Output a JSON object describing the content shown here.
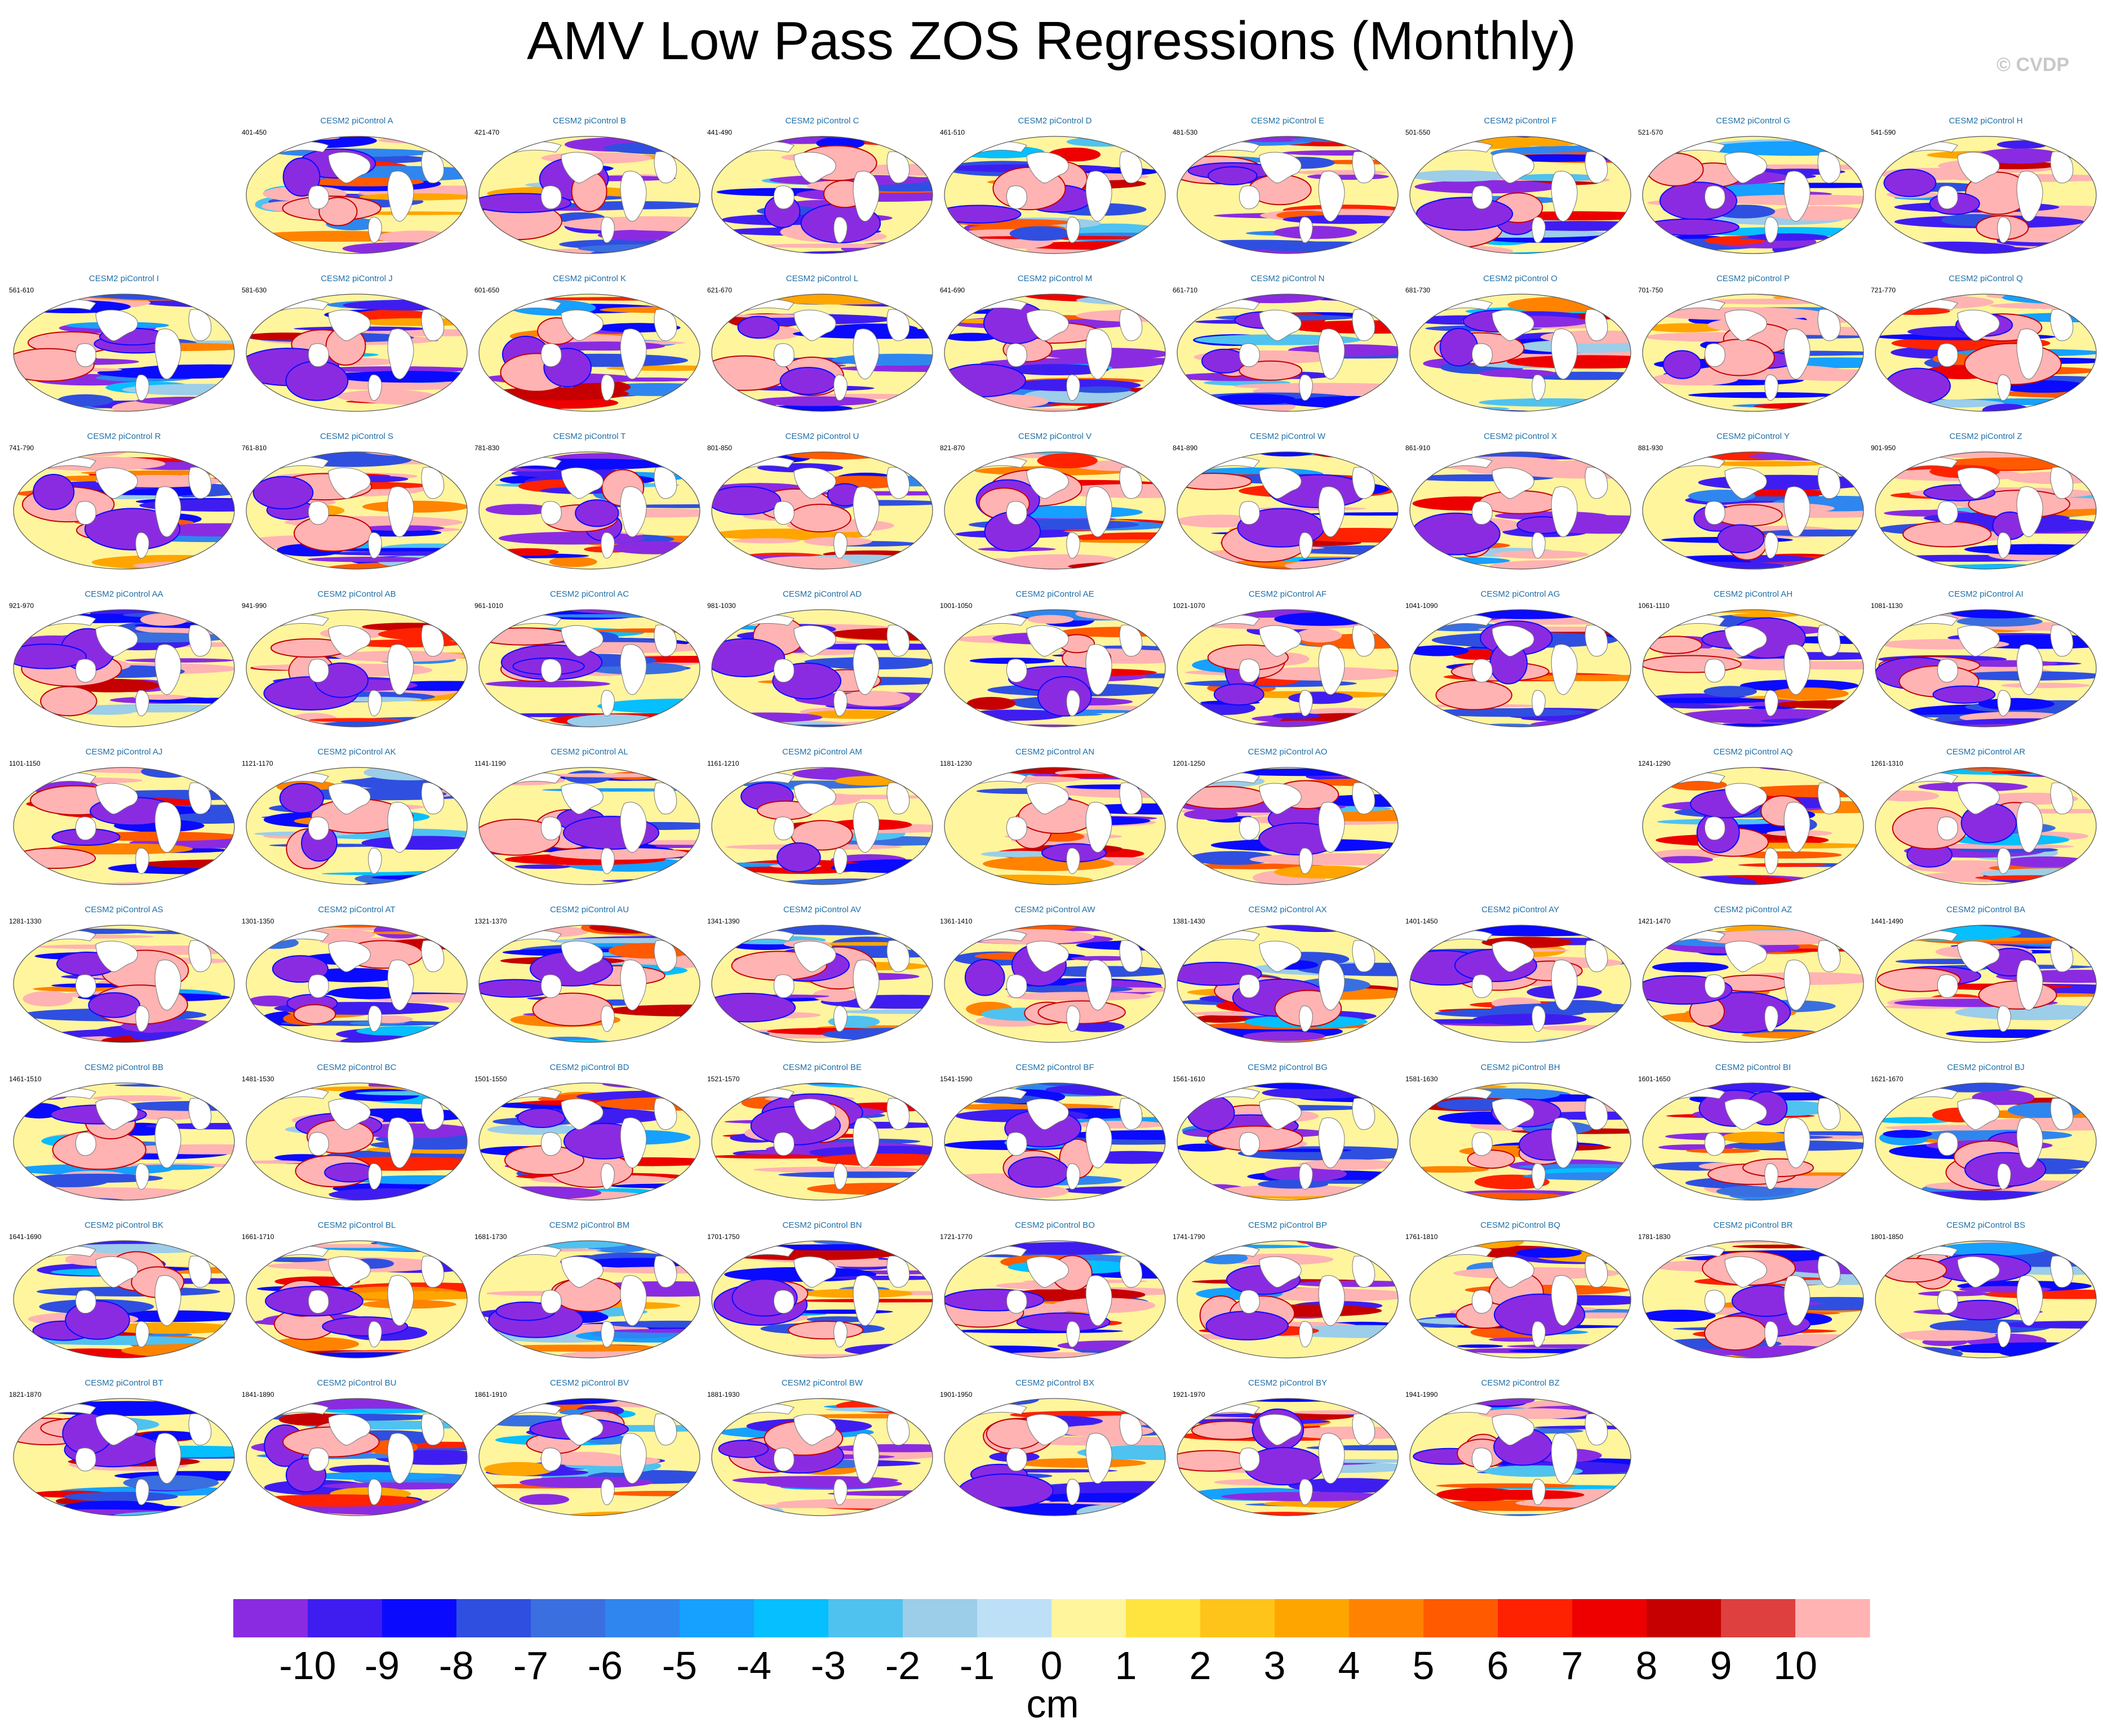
{
  "title": "AMV Low Pass ZOS Regressions (Monthly)",
  "credit": "© CVDP",
  "panel_title_prefix": "CESM2 piControl",
  "rows": [
    [
      "",
      "A",
      "B",
      "C",
      "D",
      "E",
      "F",
      "G",
      "H"
    ],
    [
      "I",
      "J",
      "K",
      "L",
      "M",
      "N",
      "O",
      "P",
      "Q"
    ],
    [
      "R",
      "S",
      "T",
      "U",
      "V",
      "W",
      "X",
      "Y",
      "Z"
    ],
    [
      "AA",
      "AB",
      "AC",
      "AD",
      "AE",
      "AF",
      "AG",
      "AH",
      "AI"
    ],
    [
      "AJ",
      "AK",
      "AL",
      "AM",
      "AN",
      "AO",
      "",
      "AQ",
      "AR"
    ],
    [
      "AS",
      "AT",
      "AU",
      "AV",
      "AW",
      "AX",
      "AY",
      "AZ",
      "BA"
    ],
    [
      "BB",
      "BC",
      "BD",
      "BE",
      "BF",
      "BG",
      "BH",
      "BI",
      "BJ"
    ],
    [
      "BK",
      "BL",
      "BM",
      "BN",
      "BO",
      "BP",
      "BQ",
      "BR",
      "BS"
    ],
    [
      "BT",
      "BU",
      "BV",
      "BW",
      "BX",
      "BY",
      "BZ",
      "",
      ""
    ]
  ],
  "year_ranges": {
    "A": "401-450",
    "B": "421-470",
    "C": "441-490",
    "D": "461-510",
    "E": "481-530",
    "F": "501-550",
    "G": "521-570",
    "H": "541-590",
    "I": "561-610",
    "J": "581-630",
    "K": "601-650",
    "L": "621-670",
    "M": "641-690",
    "N": "661-710",
    "O": "681-730",
    "P": "701-750",
    "Q": "721-770",
    "R": "741-790",
    "S": "761-810",
    "T": "781-830",
    "U": "801-850",
    "V": "821-870",
    "W": "841-890",
    "X": "861-910",
    "Y": "881-930",
    "Z": "901-950",
    "AA": "921-970",
    "AB": "941-990",
    "AC": "961-1010",
    "AD": "981-1030",
    "AE": "1001-1050",
    "AF": "1021-1070",
    "AG": "1041-1090",
    "AH": "1061-1110",
    "AI": "1081-1130",
    "AJ": "1101-1150",
    "AK": "1121-1170",
    "AL": "1141-1190",
    "AM": "1161-1210",
    "AN": "1181-1230",
    "AO": "1201-1250",
    "AQ": "1241-1290",
    "AR": "1261-1310",
    "AS": "1281-1330",
    "AT": "1301-1350",
    "AU": "1321-1370",
    "AV": "1341-1390",
    "AW": "1361-1410",
    "AX": "1381-1430",
    "AY": "1401-1450",
    "AZ": "1421-1470",
    "BA": "1441-1490",
    "BB": "1461-1510",
    "BC": "1481-1530",
    "BD": "1501-1550",
    "BE": "1521-1570",
    "BF": "1541-1590",
    "BG": "1561-1610",
    "BH": "1581-1630",
    "BI": "1601-1650",
    "BJ": "1621-1670",
    "BK": "1641-1690",
    "BL": "1661-1710",
    "BM": "1681-1730",
    "BN": "1701-1750",
    "BO": "1721-1770",
    "BP": "1741-1790",
    "BQ": "1761-1810",
    "BR": "1781-1830",
    "BS": "1801-1850",
    "BT": "1821-1870",
    "BU": "1841-1890",
    "BV": "1861-1910",
    "BW": "1881-1930",
    "BX": "1901-1950",
    "BY": "1921-1970",
    "BZ": "1941-1990"
  },
  "colorbar": {
    "colors": [
      "#8a2be2",
      "#3f1df0",
      "#0a0aff",
      "#2f4fe0",
      "#3a6fe0",
      "#2f86ef",
      "#16a0ff",
      "#06bfff",
      "#4fc2f0",
      "#9ccde9",
      "#bde0f6",
      "#fff59d",
      "#ffe33f",
      "#ffc41a",
      "#ffa500",
      "#ff8300",
      "#ff5a00",
      "#ff2200",
      "#ee0000",
      "#c60000",
      "#de3f3f",
      "#ffb3b3"
    ],
    "tick_labels": [
      "-10",
      "-9",
      "-8",
      "-7",
      "-6",
      "-5",
      "-4",
      "-3",
      "-2",
      "-1",
      "0",
      "1",
      "2",
      "3",
      "4",
      "5",
      "6",
      "7",
      "8",
      "9",
      "10"
    ],
    "unit": "cm"
  },
  "chart_data": {
    "type": "heatmap",
    "title": "AMV Low Pass ZOS Regressions (Monthly)",
    "variable": "ZOS regression on AMV (low pass, monthly)",
    "units": "cm",
    "panels": "77 global regression maps, CESM2 piControl segments A–BZ (AP not shown)",
    "levels": [
      -10,
      -9,
      -8,
      -7,
      -6,
      -5,
      -4,
      -3,
      -2,
      -1,
      0,
      1,
      2,
      3,
      4,
      5,
      6,
      7,
      8,
      9,
      10
    ],
    "colorbar_range": [
      -10,
      10
    ]
  }
}
